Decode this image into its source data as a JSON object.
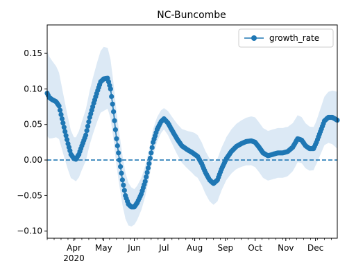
{
  "chart_data": {
    "type": "line",
    "title": "NC-Buncombe",
    "xlabel": "",
    "ylabel": "",
    "x_start": "2020-03-05",
    "x_end": "2020-12-23",
    "xlim": [
      "2020-03-05",
      "2020-12-23"
    ],
    "ylim": [
      -0.11,
      0.19
    ],
    "yticks": [
      -0.1,
      -0.05,
      0.0,
      0.05,
      0.1,
      0.15
    ],
    "ytick_labels": [
      "−0.10",
      "−0.05",
      "0.00",
      "0.05",
      "0.10",
      "0.15"
    ],
    "xticks": [
      "2020-04-01",
      "2020-05-01",
      "2020-06-01",
      "2020-07-01",
      "2020-08-01",
      "2020-09-01",
      "2020-10-01",
      "2020-11-01",
      "2020-12-01"
    ],
    "xtick_labels": [
      "Apr",
      "May",
      "Jun",
      "Jul",
      "Aug",
      "Sep",
      "Oct",
      "Nov",
      "Dec"
    ],
    "xtick_sublabel": "2020",
    "grid": false,
    "legend": {
      "position": "top-right",
      "entries": [
        "growth_rate"
      ]
    },
    "reference_line": {
      "y": 0.0,
      "style": "dashed"
    },
    "colors": {
      "series": "#1f77b4",
      "band": "#dce9f5"
    },
    "series": [
      {
        "name": "growth_rate",
        "anchors": [
          [
            "2020-03-05",
            0.094
          ],
          [
            "2020-03-07",
            0.088
          ],
          [
            "2020-03-10",
            0.085
          ],
          [
            "2020-03-14",
            0.082
          ],
          [
            "2020-03-17",
            0.076
          ],
          [
            "2020-03-20",
            0.058
          ],
          [
            "2020-03-23",
            0.04
          ],
          [
            "2020-03-26",
            0.023
          ],
          [
            "2020-03-29",
            0.008
          ],
          [
            "2020-04-01",
            0.002
          ],
          [
            "2020-04-03",
            0.001
          ],
          [
            "2020-04-06",
            0.008
          ],
          [
            "2020-04-09",
            0.02
          ],
          [
            "2020-04-13",
            0.035
          ],
          [
            "2020-04-17",
            0.06
          ],
          [
            "2020-04-21",
            0.08
          ],
          [
            "2020-04-25",
            0.098
          ],
          [
            "2020-04-28",
            0.11
          ],
          [
            "2020-05-01",
            0.114
          ],
          [
            "2020-05-05",
            0.115
          ],
          [
            "2020-05-08",
            0.1
          ],
          [
            "2020-05-11",
            0.068
          ],
          [
            "2020-05-14",
            0.03
          ],
          [
            "2020-05-17",
            0.0
          ],
          [
            "2020-05-20",
            -0.028
          ],
          [
            "2020-05-23",
            -0.05
          ],
          [
            "2020-05-26",
            -0.062
          ],
          [
            "2020-05-29",
            -0.066
          ],
          [
            "2020-06-01",
            -0.066
          ],
          [
            "2020-06-04",
            -0.06
          ],
          [
            "2020-06-08",
            -0.048
          ],
          [
            "2020-06-12",
            -0.03
          ],
          [
            "2020-06-16",
            -0.005
          ],
          [
            "2020-06-20",
            0.025
          ],
          [
            "2020-06-24",
            0.043
          ],
          [
            "2020-06-28",
            0.054
          ],
          [
            "2020-07-01",
            0.058
          ],
          [
            "2020-07-05",
            0.052
          ],
          [
            "2020-07-09",
            0.042
          ],
          [
            "2020-07-14",
            0.03
          ],
          [
            "2020-07-19",
            0.02
          ],
          [
            "2020-07-24",
            0.015
          ],
          [
            "2020-07-30",
            0.01
          ],
          [
            "2020-08-04",
            0.005
          ],
          [
            "2020-08-08",
            -0.005
          ],
          [
            "2020-08-12",
            -0.018
          ],
          [
            "2020-08-16",
            -0.028
          ],
          [
            "2020-08-20",
            -0.033
          ],
          [
            "2020-08-24",
            -0.028
          ],
          [
            "2020-08-28",
            -0.013
          ],
          [
            "2020-09-02",
            0.002
          ],
          [
            "2020-09-07",
            0.012
          ],
          [
            "2020-09-12",
            0.019
          ],
          [
            "2020-09-17",
            0.023
          ],
          [
            "2020-09-22",
            0.026
          ],
          [
            "2020-09-27",
            0.027
          ],
          [
            "2020-10-01",
            0.025
          ],
          [
            "2020-10-05",
            0.018
          ],
          [
            "2020-10-09",
            0.01
          ],
          [
            "2020-10-14",
            0.006
          ],
          [
            "2020-10-19",
            0.008
          ],
          [
            "2020-10-24",
            0.01
          ],
          [
            "2020-10-29",
            0.01
          ],
          [
            "2020-11-03",
            0.012
          ],
          [
            "2020-11-08",
            0.018
          ],
          [
            "2020-11-13",
            0.03
          ],
          [
            "2020-11-17",
            0.028
          ],
          [
            "2020-11-21",
            0.02
          ],
          [
            "2020-11-25",
            0.016
          ],
          [
            "2020-11-29",
            0.016
          ],
          [
            "2020-12-02",
            0.025
          ],
          [
            "2020-12-06",
            0.04
          ],
          [
            "2020-12-10",
            0.055
          ],
          [
            "2020-12-14",
            0.06
          ],
          [
            "2020-12-18",
            0.06
          ],
          [
            "2020-12-23",
            0.056
          ]
        ],
        "band_half_width": [
          [
            "2020-03-05",
            0.06
          ],
          [
            "2020-04-01",
            0.03
          ],
          [
            "2020-05-01",
            0.045
          ],
          [
            "2020-05-20",
            0.035
          ],
          [
            "2020-06-01",
            0.025
          ],
          [
            "2020-07-01",
            0.015
          ],
          [
            "2020-08-01",
            0.03
          ],
          [
            "2020-09-01",
            0.03
          ],
          [
            "2020-10-01",
            0.035
          ],
          [
            "2020-11-01",
            0.035
          ],
          [
            "2020-12-01",
            0.03
          ],
          [
            "2020-12-23",
            0.04
          ]
        ]
      }
    ]
  }
}
